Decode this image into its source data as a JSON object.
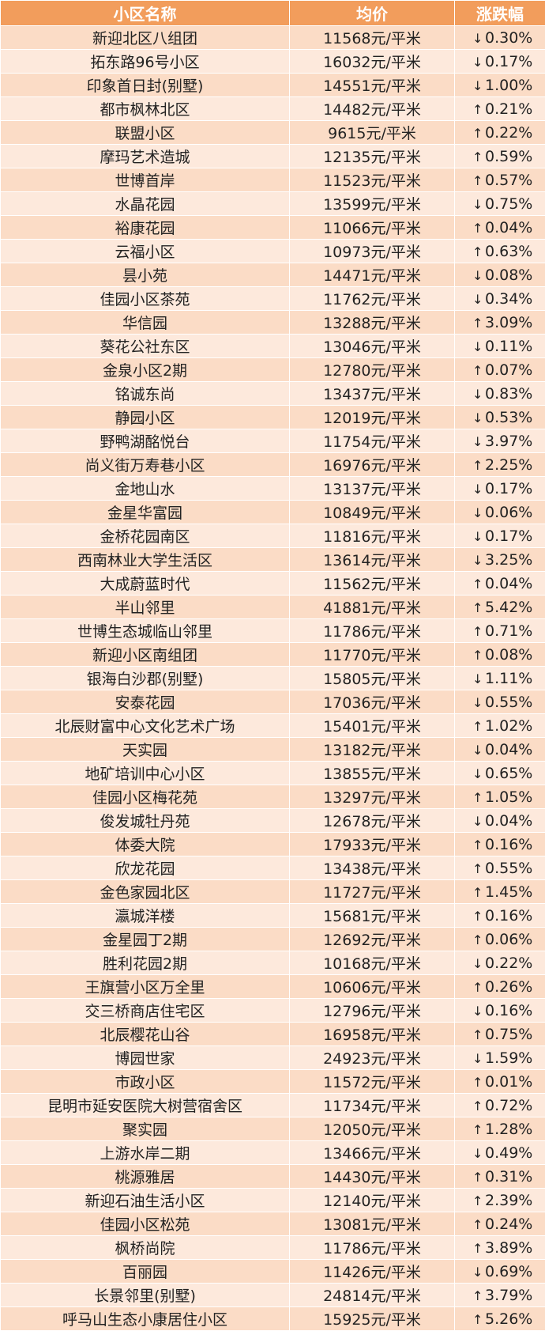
{
  "header": {
    "name": "小区名称",
    "price": "均价",
    "change": "涨跌幅"
  },
  "rows": [
    {
      "name": "新迎北区八组团",
      "price": "11568元/平米",
      "dir": "down",
      "change": "0.30%"
    },
    {
      "name": "拓东路96号小区",
      "price": "16032元/平米",
      "dir": "down",
      "change": "0.17%"
    },
    {
      "name": "印象首日封(别墅)",
      "price": "14551元/平米",
      "dir": "down",
      "change": "1.00%"
    },
    {
      "name": "都市枫林北区",
      "price": "14482元/平米",
      "dir": "up",
      "change": "0.21%"
    },
    {
      "name": "联盟小区",
      "price": "9615元/平米",
      "dir": "up",
      "change": "0.22%"
    },
    {
      "name": "摩玛艺术造城",
      "price": "12135元/平米",
      "dir": "up",
      "change": "0.59%"
    },
    {
      "name": "世博首岸",
      "price": "11523元/平米",
      "dir": "up",
      "change": "0.57%"
    },
    {
      "name": "水晶花园",
      "price": "13599元/平米",
      "dir": "down",
      "change": "0.75%"
    },
    {
      "name": "裕康花园",
      "price": "11066元/平米",
      "dir": "up",
      "change": "0.04%"
    },
    {
      "name": "云福小区",
      "price": "10973元/平米",
      "dir": "up",
      "change": "0.63%"
    },
    {
      "name": "昙小苑",
      "price": "14471元/平米",
      "dir": "down",
      "change": "0.08%"
    },
    {
      "name": "佳园小区茶苑",
      "price": "11762元/平米",
      "dir": "down",
      "change": "0.34%"
    },
    {
      "name": "华信园",
      "price": "13288元/平米",
      "dir": "up",
      "change": "3.09%"
    },
    {
      "name": "葵花公社东区",
      "price": "13046元/平米",
      "dir": "down",
      "change": "0.11%"
    },
    {
      "name": "金泉小区2期",
      "price": "12780元/平米",
      "dir": "up",
      "change": "0.07%"
    },
    {
      "name": "铭诚东尚",
      "price": "13437元/平米",
      "dir": "down",
      "change": "0.83%"
    },
    {
      "name": "静园小区",
      "price": "12019元/平米",
      "dir": "down",
      "change": "0.53%"
    },
    {
      "name": "野鸭湖酩悦台",
      "price": "11754元/平米",
      "dir": "down",
      "change": "3.97%"
    },
    {
      "name": "尚义街万寿巷小区",
      "price": "16976元/平米",
      "dir": "up",
      "change": "2.25%"
    },
    {
      "name": "金地山水",
      "price": "13137元/平米",
      "dir": "down",
      "change": "0.17%"
    },
    {
      "name": "金星华富园",
      "price": "10849元/平米",
      "dir": "down",
      "change": "0.06%"
    },
    {
      "name": "金桥花园南区",
      "price": "11816元/平米",
      "dir": "down",
      "change": "0.17%"
    },
    {
      "name": "西南林业大学生活区",
      "price": "13614元/平米",
      "dir": "down",
      "change": "3.25%"
    },
    {
      "name": "大成蔚蓝时代",
      "price": "11562元/平米",
      "dir": "up",
      "change": "0.04%"
    },
    {
      "name": "半山邻里",
      "price": "41881元/平米",
      "dir": "up",
      "change": "5.42%"
    },
    {
      "name": "世博生态城临山邻里",
      "price": "11786元/平米",
      "dir": "up",
      "change": "0.71%"
    },
    {
      "name": "新迎小区南组团",
      "price": "11770元/平米",
      "dir": "up",
      "change": "0.08%"
    },
    {
      "name": "银海白沙郡(别墅)",
      "price": "15805元/平米",
      "dir": "down",
      "change": "1.11%"
    },
    {
      "name": "安泰花园",
      "price": "17036元/平米",
      "dir": "down",
      "change": "0.55%"
    },
    {
      "name": "北辰财富中心文化艺术广场",
      "price": "15401元/平米",
      "dir": "up",
      "change": "1.02%"
    },
    {
      "name": "天实园",
      "price": "13182元/平米",
      "dir": "down",
      "change": "0.04%"
    },
    {
      "name": "地矿培训中心小区",
      "price": "13855元/平米",
      "dir": "down",
      "change": "0.65%"
    },
    {
      "name": "佳园小区梅花苑",
      "price": "13297元/平米",
      "dir": "up",
      "change": "1.05%"
    },
    {
      "name": "俊发城牡丹苑",
      "price": "12678元/平米",
      "dir": "down",
      "change": "0.04%"
    },
    {
      "name": "体委大院",
      "price": "17933元/平米",
      "dir": "up",
      "change": "0.16%"
    },
    {
      "name": "欣龙花园",
      "price": "13438元/平米",
      "dir": "up",
      "change": "0.55%"
    },
    {
      "name": "金色家园北区",
      "price": "11727元/平米",
      "dir": "up",
      "change": "1.45%"
    },
    {
      "name": "瀛城洋楼",
      "price": "15681元/平米",
      "dir": "up",
      "change": "0.16%"
    },
    {
      "name": "金星园丁2期",
      "price": "12692元/平米",
      "dir": "up",
      "change": "0.06%"
    },
    {
      "name": "胜利花园2期",
      "price": "10168元/平米",
      "dir": "down",
      "change": "0.22%"
    },
    {
      "name": "王旗营小区万全里",
      "price": "10606元/平米",
      "dir": "up",
      "change": "0.26%"
    },
    {
      "name": "交三桥商店住宅区",
      "price": "12796元/平米",
      "dir": "down",
      "change": "0.16%"
    },
    {
      "name": "北辰樱花山谷",
      "price": "16958元/平米",
      "dir": "up",
      "change": "0.75%"
    },
    {
      "name": "博园世家",
      "price": "24923元/平米",
      "dir": "down",
      "change": "1.59%"
    },
    {
      "name": "市政小区",
      "price": "11572元/平米",
      "dir": "up",
      "change": "0.01%"
    },
    {
      "name": "昆明市延安医院大树营宿舍区",
      "price": "11734元/平米",
      "dir": "up",
      "change": "0.72%"
    },
    {
      "name": "聚实园",
      "price": "12050元/平米",
      "dir": "up",
      "change": "1.28%"
    },
    {
      "name": "上游水岸二期",
      "price": "13466元/平米",
      "dir": "down",
      "change": "0.49%"
    },
    {
      "name": "桃源雅居",
      "price": "14430元/平米",
      "dir": "up",
      "change": "0.31%"
    },
    {
      "name": "新迎石油生活小区",
      "price": "12140元/平米",
      "dir": "up",
      "change": "2.39%"
    },
    {
      "name": "佳园小区松苑",
      "price": "13081元/平米",
      "dir": "up",
      "change": "0.24%"
    },
    {
      "name": "枫桥尚院",
      "price": "11786元/平米",
      "dir": "up",
      "change": "3.89%"
    },
    {
      "name": "百丽园",
      "price": "11426元/平米",
      "dir": "down",
      "change": "0.69%"
    },
    {
      "name": "长景邻里(别墅)",
      "price": "24814元/平米",
      "dir": "up",
      "change": "3.79%"
    },
    {
      "name": "呼马山生态小康居住小区",
      "price": "15925元/平米",
      "dir": "up",
      "change": "5.26%"
    }
  ]
}
